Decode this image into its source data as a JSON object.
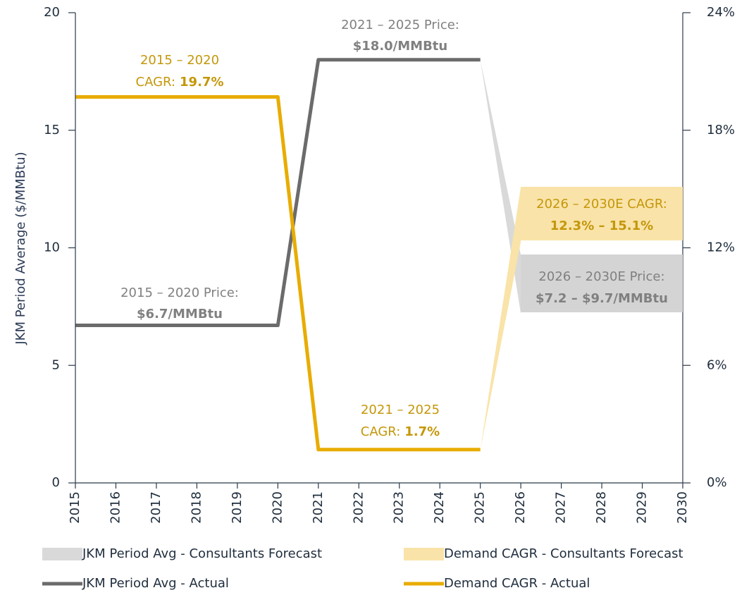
{
  "chart_data": {
    "type": "line",
    "y_axis_label": "JKM Period Average ($/MMBtu)",
    "x": [
      2015,
      2016,
      2017,
      2018,
      2019,
      2020,
      2021,
      2022,
      2023,
      2024,
      2025,
      2026,
      2027,
      2028,
      2029,
      2030
    ],
    "xlim": [
      2015,
      2030
    ],
    "ylim": [
      0,
      20
    ],
    "yticks": [
      0,
      5,
      10,
      15,
      20
    ],
    "y2lim": [
      0,
      24
    ],
    "y2ticks": [
      {
        "value": 0,
        "label": "0%"
      },
      {
        "value": 6,
        "label": "6%"
      },
      {
        "value": 12,
        "label": "12%"
      },
      {
        "value": 18,
        "label": "18%"
      },
      {
        "value": 24,
        "label": "24%"
      }
    ],
    "series": [
      {
        "name": "JKM Period Avg - Consultants Forecast",
        "kind": "band",
        "color": "#d9d9d9",
        "axis": "y",
        "low": [
          null,
          null,
          null,
          null,
          null,
          null,
          null,
          null,
          null,
          null,
          18.0,
          7.2,
          null,
          null,
          null,
          null
        ],
        "high": [
          null,
          null,
          null,
          null,
          null,
          null,
          null,
          null,
          null,
          null,
          18.0,
          9.7,
          null,
          null,
          null,
          null
        ]
      },
      {
        "name": "Demand CAGR - Consultants Forecast",
        "kind": "band",
        "color": "#f9e3a8",
        "axis": "y2",
        "low": [
          null,
          null,
          null,
          null,
          null,
          null,
          null,
          null,
          null,
          null,
          1.7,
          12.3,
          null,
          null,
          null,
          null
        ],
        "high": [
          null,
          null,
          null,
          null,
          null,
          null,
          null,
          null,
          null,
          null,
          1.7,
          15.1,
          null,
          null,
          null,
          null
        ]
      },
      {
        "name": "JKM Period Avg - Actual",
        "kind": "line",
        "color": "#6b6b6b",
        "axis": "y",
        "values": [
          6.7,
          6.7,
          6.7,
          6.7,
          6.7,
          6.7,
          18.0,
          18.0,
          18.0,
          18.0,
          18.0,
          null,
          null,
          null,
          null,
          null
        ]
      },
      {
        "name": "Demand CAGR - Actual",
        "kind": "line",
        "color": "#e8ac00",
        "axis": "y2",
        "values": [
          19.7,
          19.7,
          19.7,
          19.7,
          19.7,
          19.7,
          1.7,
          1.7,
          1.7,
          1.7,
          1.7,
          null,
          null,
          null,
          null,
          null
        ]
      }
    ],
    "annotations": [
      {
        "text": "2015 – 2020",
        "prefix": "CAGR:",
        "bold": "19.7%"
      },
      {
        "text": "2015 – 2020 Price:",
        "bold": "$6.7/MMBtu"
      },
      {
        "text": "2021 – 2025 Price:",
        "bold": "$18.0/MMBtu"
      },
      {
        "text": "2021 – 2025",
        "prefix": "CAGR:",
        "bold": "1.7%"
      },
      {
        "text": "2026 – 2030E CAGR:",
        "bold": "12.3% – 15.1%"
      },
      {
        "text": "2026 – 2030E Price:",
        "bold": "$7.2 – $9.7/MMBtu"
      }
    ]
  }
}
